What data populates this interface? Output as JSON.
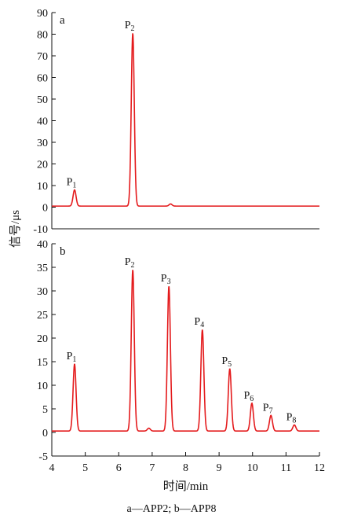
{
  "caption": "a—APP2; b—APP8",
  "chart_data": [
    {
      "type": "line",
      "panel_label": "a",
      "ylabel": "信号/μs",
      "xlabel": "",
      "ylim": [
        -10,
        90
      ],
      "yticks": [
        -10,
        0,
        10,
        20,
        30,
        40,
        50,
        60,
        70,
        80,
        90
      ],
      "xlim": [
        4,
        12
      ],
      "color": "#e41a1c",
      "baseline": 0.5,
      "peaks": [
        {
          "label": "P",
          "sub": "1",
          "x": 4.68,
          "y": 8.0
        },
        {
          "label": "P",
          "sub": "2",
          "x": 6.42,
          "y": 80.5
        }
      ],
      "minor_bumps": [
        {
          "x": 7.55,
          "y": 1.5
        }
      ]
    },
    {
      "type": "line",
      "panel_label": "b",
      "ylabel": "信号/μs",
      "xlabel": "时间/min",
      "ylim": [
        -5,
        40
      ],
      "yticks": [
        -5,
        0,
        5,
        10,
        15,
        20,
        25,
        30,
        35,
        40
      ],
      "xlim": [
        4,
        12
      ],
      "xticks": [
        4,
        5,
        6,
        7,
        8,
        9,
        10,
        11,
        12
      ],
      "color": "#e41a1c",
      "baseline": 0.3,
      "peaks": [
        {
          "label": "P",
          "sub": "1",
          "x": 4.68,
          "y": 14.5
        },
        {
          "label": "P",
          "sub": "2",
          "x": 6.42,
          "y": 34.5
        },
        {
          "label": "P",
          "sub": "3",
          "x": 7.5,
          "y": 31.0
        },
        {
          "label": "P",
          "sub": "4",
          "x": 8.5,
          "y": 21.8
        },
        {
          "label": "P",
          "sub": "5",
          "x": 9.32,
          "y": 13.5
        },
        {
          "label": "P",
          "sub": "6",
          "x": 9.98,
          "y": 6.2
        },
        {
          "label": "P",
          "sub": "7",
          "x": 10.55,
          "y": 3.6
        },
        {
          "label": "P",
          "sub": "8",
          "x": 11.25,
          "y": 1.6
        }
      ],
      "minor_bumps": [
        {
          "x": 6.9,
          "y": 0.9
        }
      ]
    }
  ]
}
